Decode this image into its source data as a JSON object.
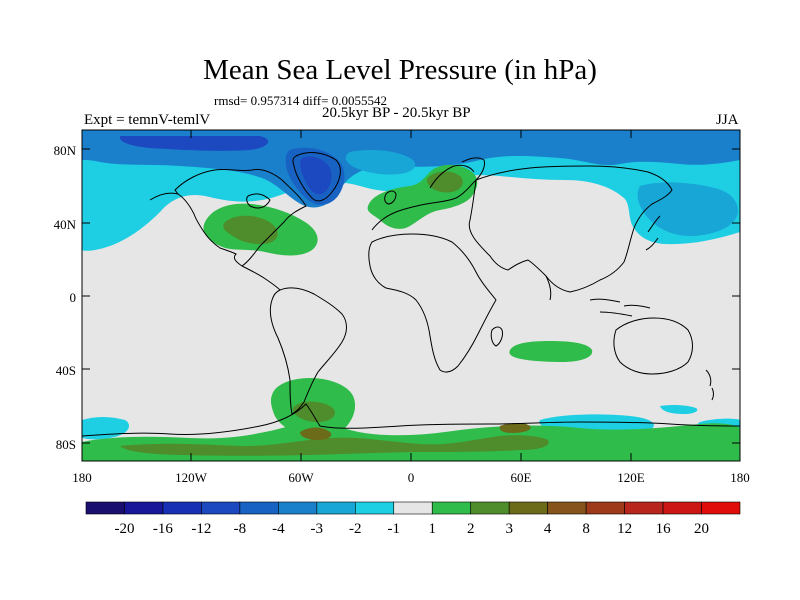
{
  "title": "Mean Sea Level Pressure (in hPa)",
  "stats": "rmsd= 0.957314 diff= 0.0055542",
  "subtitle": "20.5kyr BP - 20.5kyr BP",
  "experiment": "Expt = temnV-temlV",
  "season": "JJA",
  "lat_labels": [
    "80N",
    "40N",
    "0",
    "40S",
    "80S"
  ],
  "lon_labels": [
    "180",
    "120W",
    "60W",
    "0",
    "60E",
    "120E",
    "180"
  ],
  "colorbar": {
    "labels": [
      "-20",
      "-16",
      "-12",
      "-8",
      "-4",
      "-3",
      "-2",
      "-1",
      "1",
      "2",
      "3",
      "4",
      "8",
      "12",
      "16",
      "20"
    ],
    "colors": [
      "#1a0f6e",
      "#18179a",
      "#1830b4",
      "#1c48c0",
      "#1862c4",
      "#1a80cc",
      "#18a6d6",
      "#1ecfe4",
      "#e6e6e6",
      "#2fbc4a",
      "#4f8c2b",
      "#6b6b1a",
      "#87531c",
      "#9e3a1a",
      "#b8251c",
      "#cc1616",
      "#e00c0c"
    ]
  }
}
